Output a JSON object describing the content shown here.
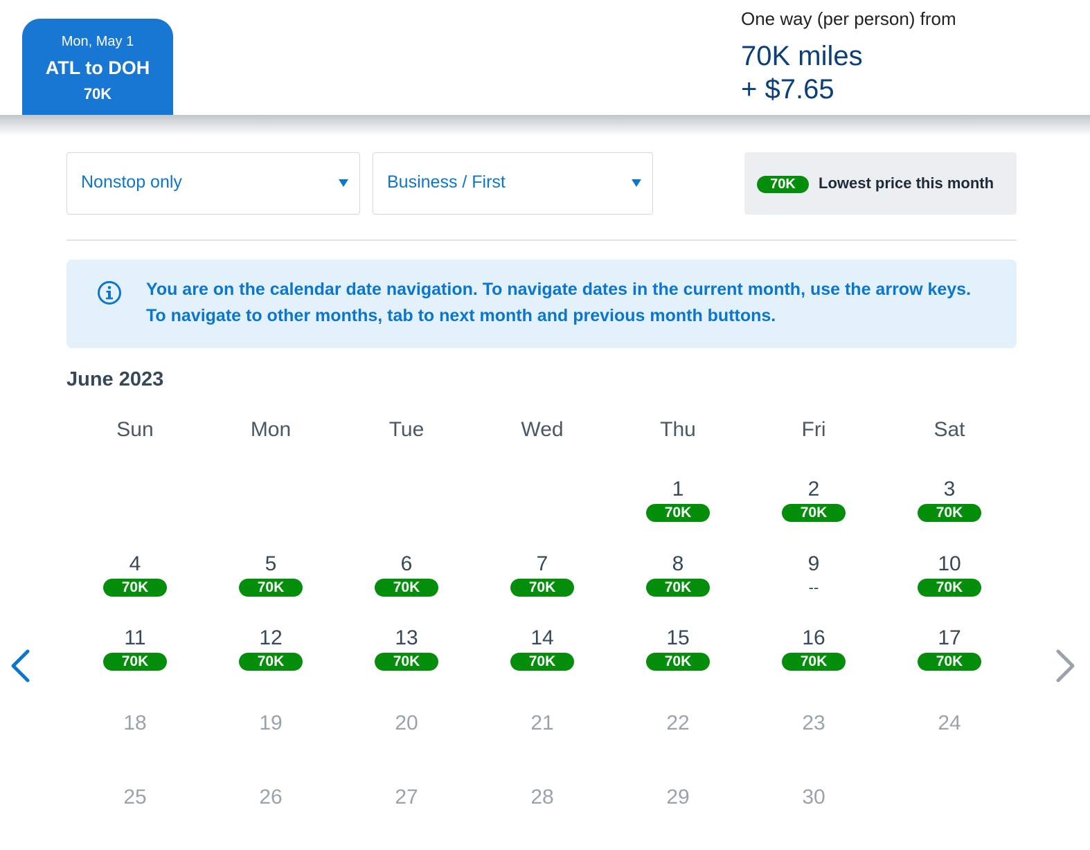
{
  "header": {
    "selected_tab": {
      "date": "Mon, May 1",
      "route": "ATL to DOH",
      "price": "70K"
    },
    "fare": {
      "label": "One way (per person) from",
      "miles": "70K miles",
      "tax": "+ $7.65"
    }
  },
  "filters": {
    "stops": {
      "value": "Nonstop only"
    },
    "cabin": {
      "value": "Business / First"
    }
  },
  "legend": {
    "pill": "70K",
    "text": "Lowest price this month"
  },
  "info_banner": {
    "text": "You are on the calendar date navigation. To navigate dates in the current month, use the arrow keys. To navigate to other months, tab to next month and previous month buttons."
  },
  "calendar": {
    "month_title": "June 2023",
    "weekdays": [
      "Sun",
      "Mon",
      "Tue",
      "Wed",
      "Thu",
      "Fri",
      "Sat"
    ],
    "weeks": [
      [
        null,
        null,
        null,
        null,
        {
          "day": "1",
          "price": "70K"
        },
        {
          "day": "2",
          "price": "70K"
        },
        {
          "day": "3",
          "price": "70K"
        }
      ],
      [
        {
          "day": "4",
          "price": "70K"
        },
        {
          "day": "5",
          "price": "70K"
        },
        {
          "day": "6",
          "price": "70K"
        },
        {
          "day": "7",
          "price": "70K"
        },
        {
          "day": "8",
          "price": "70K"
        },
        {
          "day": "9",
          "price": "--"
        },
        {
          "day": "10",
          "price": "70K"
        }
      ],
      [
        {
          "day": "11",
          "price": "70K"
        },
        {
          "day": "12",
          "price": "70K"
        },
        {
          "day": "13",
          "price": "70K"
        },
        {
          "day": "14",
          "price": "70K"
        },
        {
          "day": "15",
          "price": "70K"
        },
        {
          "day": "16",
          "price": "70K"
        },
        {
          "day": "17",
          "price": "70K"
        }
      ],
      [
        {
          "day": "18"
        },
        {
          "day": "19"
        },
        {
          "day": "20"
        },
        {
          "day": "21"
        },
        {
          "day": "22"
        },
        {
          "day": "23"
        },
        {
          "day": "24"
        }
      ],
      [
        {
          "day": "25"
        },
        {
          "day": "26"
        },
        {
          "day": "27"
        },
        {
          "day": "28"
        },
        {
          "day": "29"
        },
        {
          "day": "30"
        },
        null
      ]
    ]
  },
  "nav": {
    "prev_icon": "chevron-left-icon",
    "next_icon": "chevron-right-icon"
  },
  "colors": {
    "brand_blue": "#1877d2",
    "price_green": "#058e0b",
    "banner_bg": "#e3f1fb"
  }
}
